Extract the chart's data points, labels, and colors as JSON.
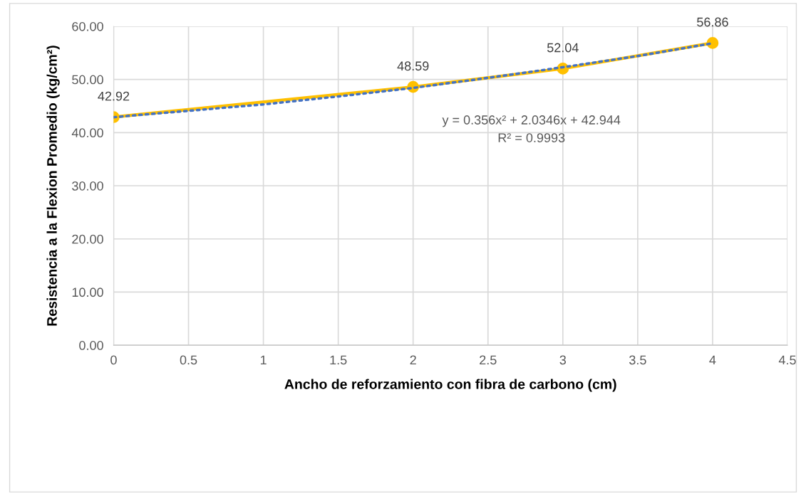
{
  "chart_data": {
    "type": "line",
    "xlabel": "Ancho de reforzamiento con fibra de carbono (cm)",
    "ylabel": "Resistencia a la Flexion Promedio (kg/cm²)",
    "x": [
      0,
      2,
      3,
      4
    ],
    "series": [
      {
        "color": "#ffc000",
        "values": [
          42.92,
          48.59,
          52.04,
          56.86
        ],
        "marker": "circle",
        "line_style": "solid",
        "value_labels": [
          "42.92",
          "48.59",
          "52.04",
          "56.86"
        ]
      },
      {
        "color": "#4472c4",
        "x": [
          0,
          0.5,
          1,
          1.5,
          2,
          2.5,
          3,
          3.5,
          4
        ],
        "values": [
          42.9,
          44.1,
          45.3,
          46.8,
          48.4,
          50.3,
          52.3,
          54.4,
          56.8
        ],
        "marker": "none",
        "line_style": "dotted"
      }
    ],
    "xlim": [
      0,
      4.5
    ],
    "xticks": [
      0,
      0.5,
      1,
      1.5,
      2,
      2.5,
      3,
      3.5,
      4,
      4.5
    ],
    "ylim": [
      0,
      60
    ],
    "yticks": [
      {
        "value": 0,
        "label": "0.00"
      },
      {
        "value": 10,
        "label": "10.00"
      },
      {
        "value": 20,
        "label": "20.00"
      },
      {
        "value": 30,
        "label": "30.00"
      },
      {
        "value": 40,
        "label": "40.00"
      },
      {
        "value": 50,
        "label": "50.00"
      },
      {
        "value": 60,
        "label": "60.00"
      }
    ],
    "grid": true,
    "annotations": [
      "y = 0.356x² + 2.0346x + 42.944",
      "R² = 0.9993"
    ]
  }
}
